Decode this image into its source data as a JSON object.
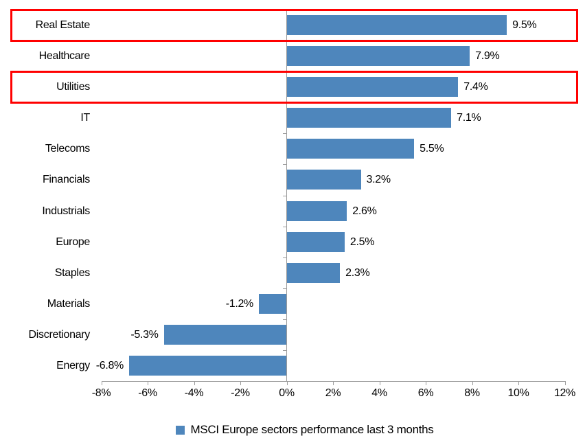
{
  "chart_data": {
    "type": "bar",
    "orientation": "horizontal",
    "title": "",
    "legend": {
      "label": "MSCI Europe sectors performance last 3 months",
      "marker_color": "#4e86bc",
      "position": "bottom"
    },
    "categories": [
      "Real Estate",
      "Healthcare",
      "Utilities",
      "IT",
      "Telecoms",
      "Financials",
      "Industrials",
      "Europe",
      "Staples",
      "Materials",
      "Discretionary",
      "Energy"
    ],
    "values": [
      9.5,
      7.9,
      7.4,
      7.1,
      5.5,
      3.2,
      2.6,
      2.5,
      2.3,
      -1.2,
      -5.3,
      -6.8
    ],
    "value_labels": [
      "9.5%",
      "7.9%",
      "7.4%",
      "7.1%",
      "5.5%",
      "3.2%",
      "2.6%",
      "2.5%",
      "2.3%",
      "-1.2%",
      "-5.3%",
      "-6.8%"
    ],
    "highlighted_categories": [
      "Real Estate",
      "Utilities"
    ],
    "x_axis": {
      "min": -8,
      "max": 12,
      "tick_step": 2,
      "tick_labels": [
        "-8%",
        "-6%",
        "-4%",
        "-2%",
        "0%",
        "2%",
        "4%",
        "6%",
        "8%",
        "10%",
        "12%"
      ]
    },
    "grid": false,
    "colors": {
      "bar": "#4e86bc",
      "axis": "#9b9b9b",
      "highlight_box": "#ff0000",
      "text": "#000000"
    }
  }
}
